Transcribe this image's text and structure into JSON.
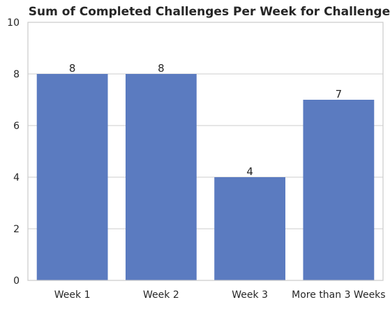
{
  "chart_data": {
    "type": "bar",
    "title": "Sum of Completed Challenges Per Week for Challenge A",
    "xlabel": "",
    "ylabel": "",
    "categories": [
      "Week 1",
      "Week 2",
      "Week 3",
      "More than 3 Weeks"
    ],
    "values": [
      8,
      8,
      4,
      7
    ],
    "data_labels": [
      "8",
      "8",
      "4",
      "7"
    ],
    "ylim": [
      0,
      10
    ],
    "yticks": [
      0,
      2,
      4,
      6,
      8,
      10
    ],
    "ytick_labels": [
      "0",
      "2",
      "4",
      "6",
      "8",
      "10"
    ],
    "grid": "horizontal",
    "bar_color": "#5b7bc0",
    "grid_color": "#cccccc",
    "text_color": "#262626",
    "background": "#ffffff"
  }
}
